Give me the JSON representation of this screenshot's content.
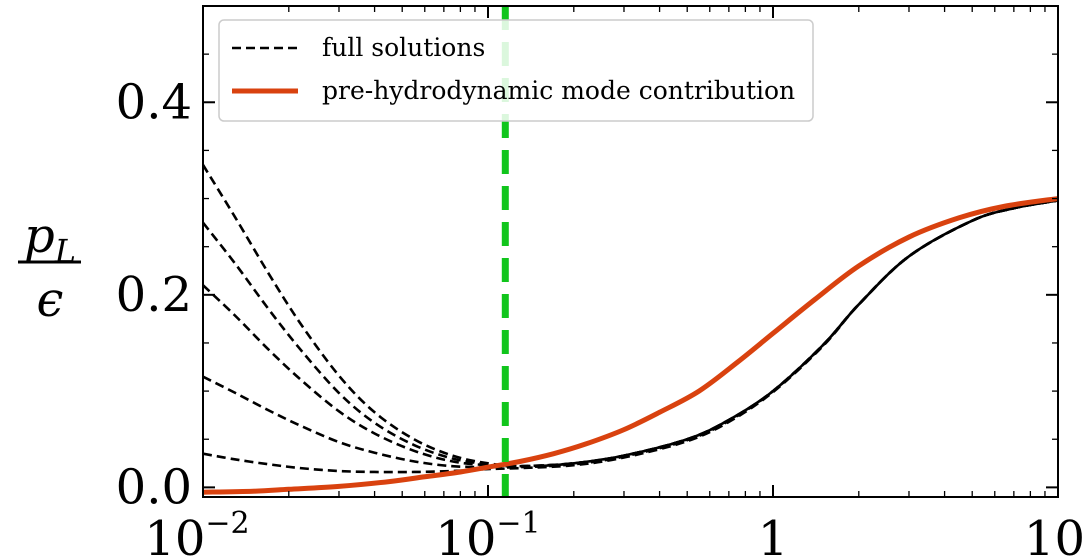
{
  "chart_data": {
    "type": "line",
    "title": "",
    "xlabel": "",
    "ylabel": {
      "numerator": "p",
      "numerator_subscript": "L",
      "denominator": "ϵ"
    },
    "xscale": "log",
    "xlim": [
      0.01,
      10
    ],
    "ylim": [
      -0.01,
      0.5
    ],
    "grid": false,
    "legend_placement": "top-left",
    "x_ticks": [
      {
        "value": 0.01,
        "base": "10",
        "exp": "−2"
      },
      {
        "value": 0.1,
        "base": "10",
        "exp": "−1"
      },
      {
        "value": 1,
        "base": "1",
        "exp": ""
      },
      {
        "value": 10,
        "base": "10",
        "exp": ""
      }
    ],
    "y_ticks": [
      {
        "value": 0.0,
        "label": "0.0"
      },
      {
        "value": 0.2,
        "label": "0.2"
      },
      {
        "value": 0.4,
        "label": "0.4"
      }
    ],
    "vertical_line": {
      "x": 0.115,
      "color": "#11c51c"
    },
    "legend": [
      {
        "label": "full solutions",
        "style": "dashed",
        "color": "#000000"
      },
      {
        "label": "pre-hydrodynamic mode contribution",
        "style": "solid",
        "color": "#d9420f"
      }
    ],
    "series": [
      {
        "group": "full solutions",
        "style": "dashed",
        "color": "#000000",
        "x": [
          0.01,
          0.013,
          0.017,
          0.022,
          0.03,
          0.04,
          0.055,
          0.075,
          0.1,
          0.13,
          0.2,
          0.3,
          0.5,
          0.7,
          1.0,
          1.5,
          2.0,
          3.0,
          5.0,
          7.0,
          10.0
        ],
        "y": [
          0.335,
          0.28,
          0.222,
          0.17,
          0.116,
          0.078,
          0.05,
          0.033,
          0.025,
          0.022,
          0.025,
          0.033,
          0.05,
          0.07,
          0.1,
          0.148,
          0.19,
          0.24,
          0.277,
          0.29,
          0.298
        ]
      },
      {
        "group": "full solutions",
        "style": "dashed",
        "color": "#000000",
        "x": [
          0.01,
          0.013,
          0.017,
          0.022,
          0.03,
          0.04,
          0.055,
          0.075,
          0.1,
          0.13,
          0.2,
          0.3,
          0.5,
          0.7,
          1.0,
          1.5,
          2.0,
          3.0,
          5.0,
          7.0,
          10.0
        ],
        "y": [
          0.275,
          0.232,
          0.185,
          0.143,
          0.098,
          0.067,
          0.044,
          0.03,
          0.024,
          0.022,
          0.025,
          0.033,
          0.05,
          0.07,
          0.1,
          0.148,
          0.19,
          0.24,
          0.277,
          0.29,
          0.298
        ]
      },
      {
        "group": "full solutions",
        "style": "dashed",
        "color": "#000000",
        "x": [
          0.01,
          0.013,
          0.017,
          0.022,
          0.03,
          0.04,
          0.055,
          0.075,
          0.1,
          0.13,
          0.2,
          0.3,
          0.5,
          0.7,
          1.0,
          1.5,
          2.0,
          3.0,
          5.0,
          7.0,
          10.0
        ],
        "y": [
          0.21,
          0.178,
          0.143,
          0.112,
          0.079,
          0.056,
          0.038,
          0.027,
          0.023,
          0.022,
          0.025,
          0.033,
          0.05,
          0.07,
          0.1,
          0.148,
          0.19,
          0.24,
          0.277,
          0.29,
          0.298
        ]
      },
      {
        "group": "full solutions",
        "style": "dashed",
        "color": "#000000",
        "x": [
          0.01,
          0.013,
          0.017,
          0.022,
          0.03,
          0.04,
          0.055,
          0.075,
          0.1,
          0.13,
          0.2,
          0.3,
          0.5,
          0.7,
          1.0,
          1.5,
          2.0,
          3.0,
          5.0,
          7.0,
          10.0
        ],
        "y": [
          0.115,
          0.098,
          0.08,
          0.064,
          0.047,
          0.036,
          0.027,
          0.022,
          0.021,
          0.021,
          0.024,
          0.032,
          0.049,
          0.069,
          0.1,
          0.148,
          0.19,
          0.24,
          0.277,
          0.29,
          0.298
        ]
      },
      {
        "group": "full solutions",
        "style": "dashed",
        "color": "#000000",
        "x": [
          0.01,
          0.013,
          0.017,
          0.022,
          0.03,
          0.04,
          0.055,
          0.075,
          0.1,
          0.13,
          0.2,
          0.3,
          0.5,
          0.7,
          1.0,
          1.5,
          2.0,
          3.0,
          5.0,
          7.0,
          10.0
        ],
        "y": [
          0.035,
          0.029,
          0.024,
          0.02,
          0.017,
          0.016,
          0.016,
          0.017,
          0.019,
          0.02,
          0.023,
          0.031,
          0.048,
          0.068,
          0.099,
          0.147,
          0.19,
          0.24,
          0.277,
          0.29,
          0.298
        ]
      },
      {
        "group": "full solutions",
        "style": "solid",
        "color": "#000000",
        "x": [
          0.15,
          0.2,
          0.3,
          0.5,
          0.7,
          1.0,
          1.5,
          2.0,
          3.0,
          5.0,
          7.0,
          10.0
        ],
        "y": [
          0.022,
          0.025,
          0.033,
          0.05,
          0.07,
          0.1,
          0.148,
          0.19,
          0.24,
          0.277,
          0.29,
          0.298
        ]
      },
      {
        "name": "pre-hydrodynamic mode contribution",
        "style": "solid",
        "color": "#d9420f",
        "x": [
          0.01,
          0.015,
          0.02,
          0.03,
          0.045,
          0.06,
          0.08,
          0.1,
          0.13,
          0.17,
          0.22,
          0.3,
          0.4,
          0.55,
          0.75,
          1.0,
          1.4,
          2.0,
          3.0,
          4.5,
          6.5,
          10.0
        ],
        "y": [
          -0.005,
          -0.004,
          -0.002,
          0.001,
          0.006,
          0.011,
          0.016,
          0.021,
          0.027,
          0.035,
          0.045,
          0.06,
          0.078,
          0.1,
          0.13,
          0.16,
          0.195,
          0.23,
          0.26,
          0.28,
          0.292,
          0.3
        ]
      }
    ]
  }
}
